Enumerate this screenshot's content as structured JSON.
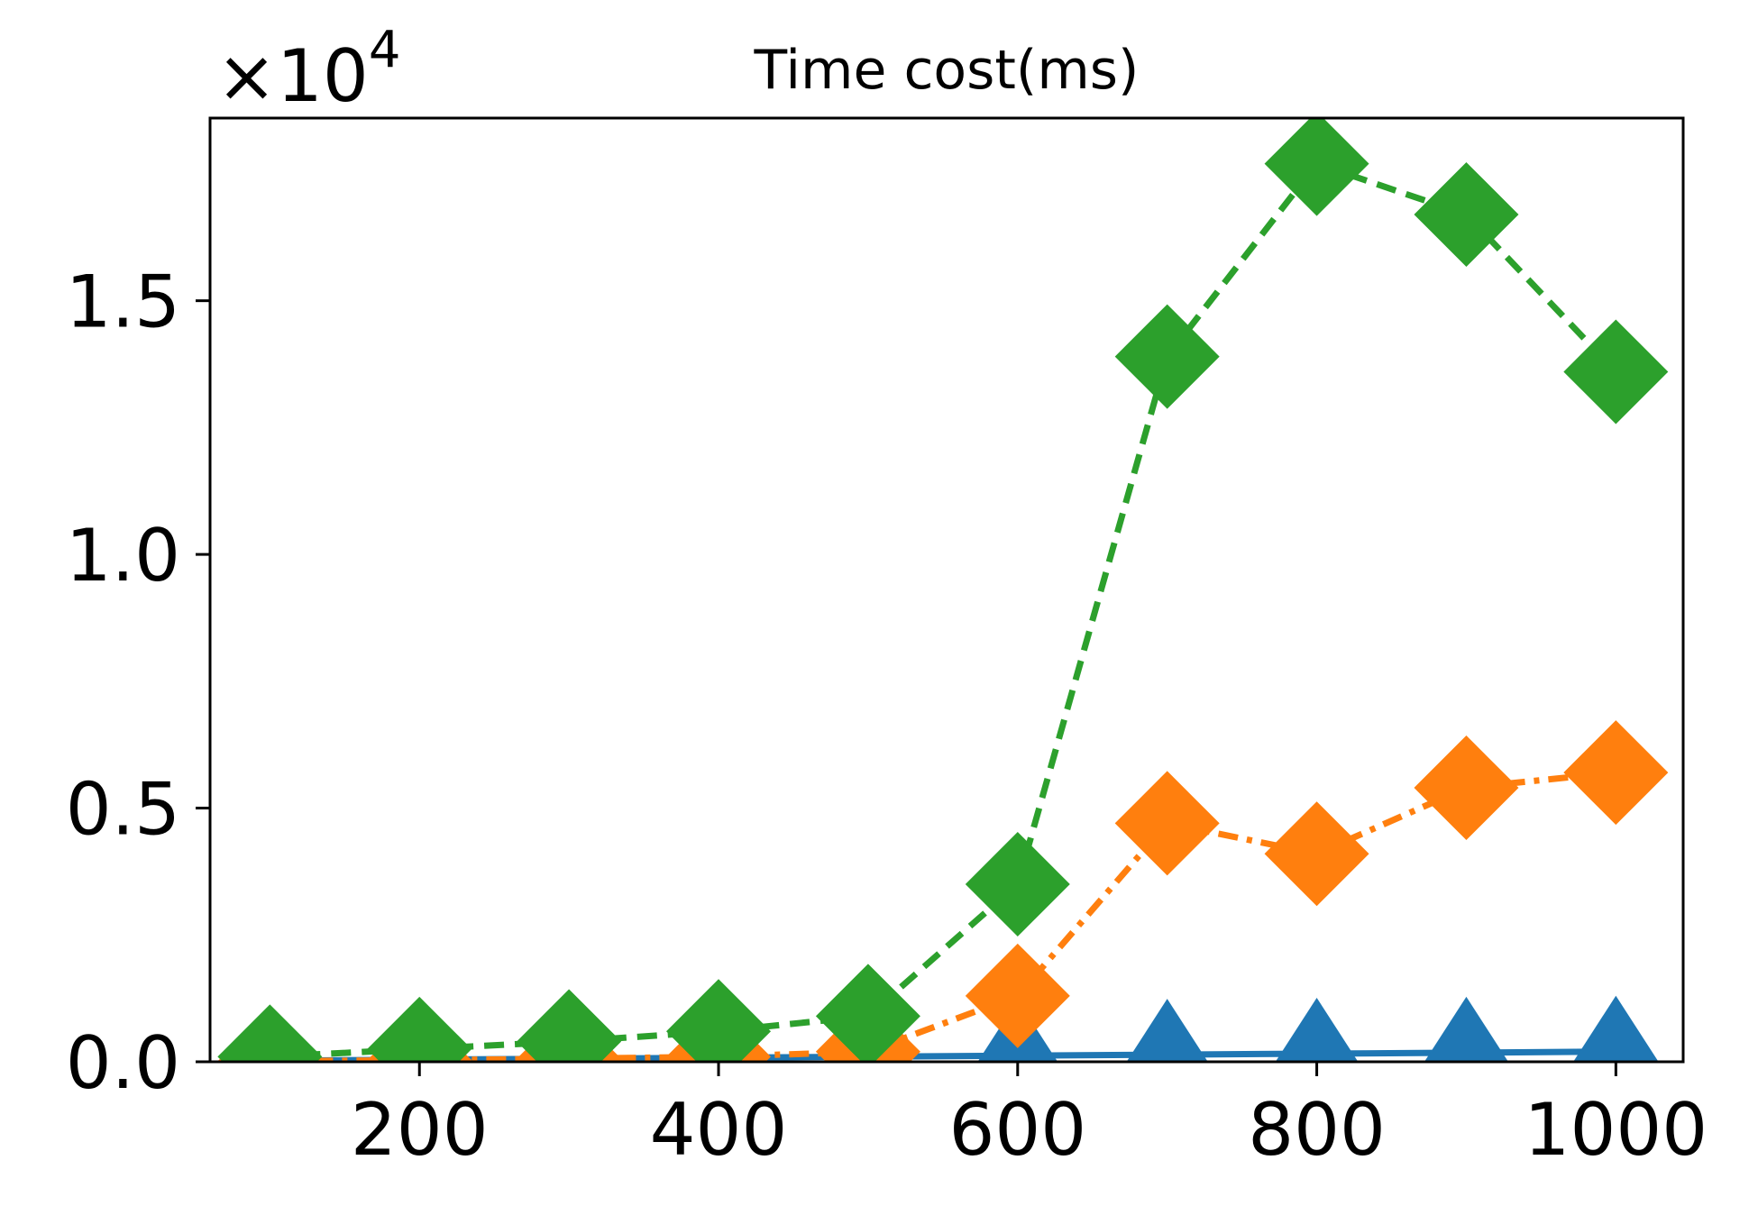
{
  "chart_data": {
    "type": "line",
    "title": "Time cost(ms)",
    "y_multiplier": {
      "base": "×10",
      "exponent": "4"
    },
    "x": [
      100,
      200,
      300,
      400,
      500,
      600,
      700,
      800,
      900,
      1000
    ],
    "xlim": [
      60,
      1045
    ],
    "ylim": [
      0,
      1.86
    ],
    "x_ticks": [
      200,
      400,
      600,
      800,
      1000
    ],
    "x_tick_labels": [
      "200",
      "400",
      "600",
      "800",
      "1000"
    ],
    "y_ticks": [
      0,
      0.5,
      1.0,
      1.5
    ],
    "y_tick_labels": [
      "0.0",
      "0.5",
      "1.0",
      "1.5"
    ],
    "grid": false,
    "series": [
      {
        "color": "#1f77b4",
        "line_style": "solid",
        "marker": "triangle-up",
        "values": [
          0.002,
          0.004,
          0.006,
          0.008,
          0.01,
          0.012,
          0.014,
          0.016,
          0.018,
          0.02
        ]
      },
      {
        "color": "#ff7f0e",
        "line_style": "dashdot",
        "marker": "diamond",
        "values": [
          0.001,
          0.003,
          0.006,
          0.01,
          0.02,
          0.13,
          0.47,
          0.41,
          0.54,
          0.57
        ]
      },
      {
        "color": "#2ca02c",
        "line_style": "dashed",
        "marker": "diamond",
        "values": [
          0.01,
          0.025,
          0.04,
          0.06,
          0.09,
          0.35,
          1.39,
          1.77,
          1.67,
          1.36
        ]
      }
    ]
  }
}
